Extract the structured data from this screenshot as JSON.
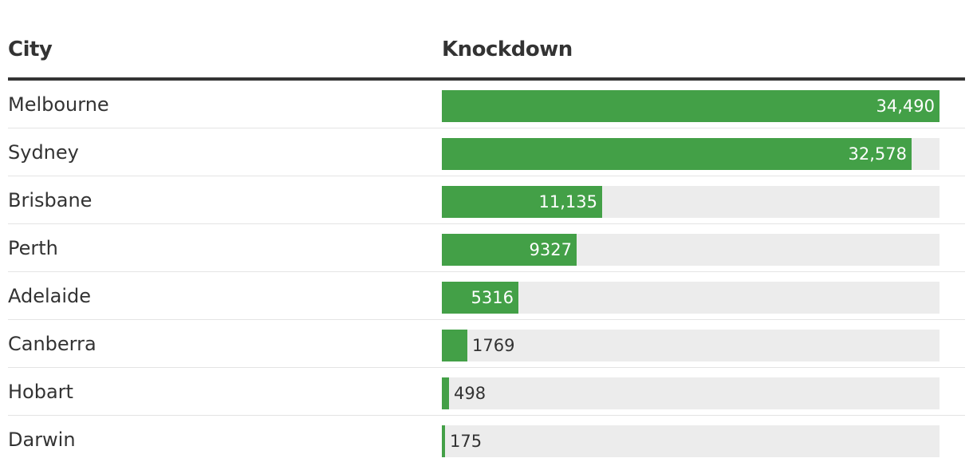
{
  "chart_data": {
    "type": "table",
    "columns": [
      "City",
      "Knockdown"
    ],
    "rows": [
      {
        "city": "Melbourne",
        "value": 34490,
        "label": "34,490"
      },
      {
        "city": "Sydney",
        "value": 32578,
        "label": "32,578"
      },
      {
        "city": "Brisbane",
        "value": 11135,
        "label": "11,135"
      },
      {
        "city": "Perth",
        "value": 9327,
        "label": "9327"
      },
      {
        "city": "Adelaide",
        "value": 5316,
        "label": "5316"
      },
      {
        "city": "Canberra",
        "value": 1769,
        "label": "1769"
      },
      {
        "city": "Hobart",
        "value": 498,
        "label": "498"
      },
      {
        "city": "Darwin",
        "value": 175,
        "label": "175"
      }
    ],
    "max": 34490,
    "bar_color": "#43a047",
    "track_color": "#ececec"
  }
}
